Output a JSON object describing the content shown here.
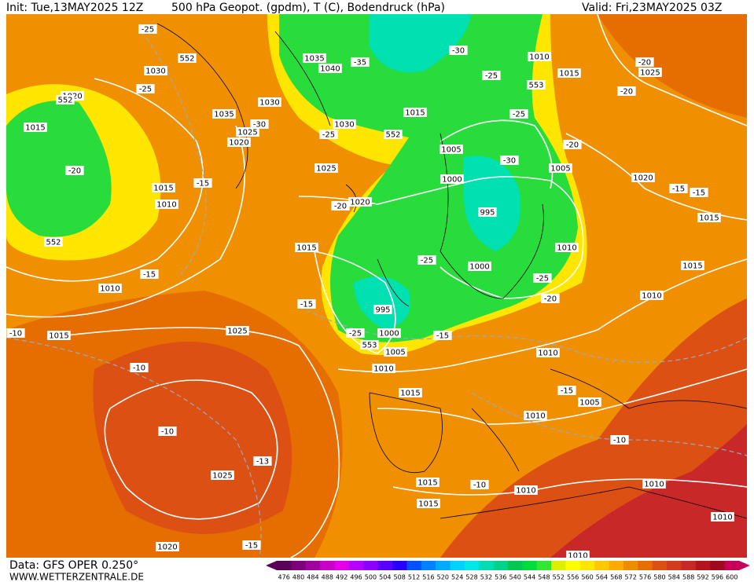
{
  "header": {
    "init": "Init: Tue,13MAY2025 12Z",
    "title": "500 hPa Geopot. (gpdm), T (C), Bodendruck (hPa)",
    "valid": "Valid: Fri,23MAY2025 03Z"
  },
  "footer": {
    "source": "Data: GFS OPER 0.250°",
    "website": "WWW.WETTERZENTRALE.DE"
  },
  "colorbar": {
    "values": [
      476,
      480,
      484,
      488,
      492,
      496,
      500,
      504,
      508,
      512,
      516,
      520,
      524,
      528,
      532,
      536,
      540,
      544,
      548,
      552,
      556,
      560,
      564,
      568,
      572,
      576,
      580,
      584,
      588,
      592,
      596,
      600
    ],
    "colors": [
      "#5a005a",
      "#7d007d",
      "#a000a0",
      "#c800c8",
      "#e600e6",
      "#b400ff",
      "#8c00ff",
      "#5a00ff",
      "#2800ff",
      "#0050ff",
      "#0082ff",
      "#00aaff",
      "#00d2ff",
      "#00e6e6",
      "#00dcb4",
      "#00d28c",
      "#00c850",
      "#00dc3c",
      "#32e632",
      "#dcf000",
      "#ffff00",
      "#ffe600",
      "#ffc800",
      "#ffaa00",
      "#f08c00",
      "#e66e00",
      "#dc5014",
      "#d23c1e",
      "#c82828",
      "#b4141e",
      "#a00a1e",
      "#c8005a"
    ]
  },
  "map_labels": [
    "1015",
    "1030",
    "1020",
    "-25",
    "552",
    "-25",
    "552",
    "-20",
    "1015",
    "1010",
    "-15",
    "552",
    "-15",
    "1010",
    "1015",
    "-10",
    "-10",
    "1035",
    "1040",
    "-35",
    "1030",
    "1035",
    "1025",
    "1020",
    "-30",
    "1030",
    "-25",
    "552",
    "1025",
    "1020",
    "-20",
    "1015",
    "-15",
    "1025",
    "-30",
    "-25",
    "1010",
    "553",
    "1015",
    "1015",
    "-25",
    "1005",
    "-30",
    "-20",
    "1005",
    "1000",
    "995",
    "-25",
    "1000",
    "1010",
    "-25",
    "-20",
    "995",
    "-25",
    "1000",
    "553",
    "-15",
    "1005",
    "1010",
    "1010",
    "1015",
    "-15",
    "1005",
    "1010",
    "-10",
    "-13",
    "1025",
    "-10",
    "1015",
    "-10",
    "1010",
    "1010",
    "1015",
    "1010",
    "-15",
    "1020",
    "1010",
    "-20",
    "1025",
    "-20",
    "1020",
    "-15",
    "-15",
    "1015",
    "1015",
    "1010"
  ]
}
